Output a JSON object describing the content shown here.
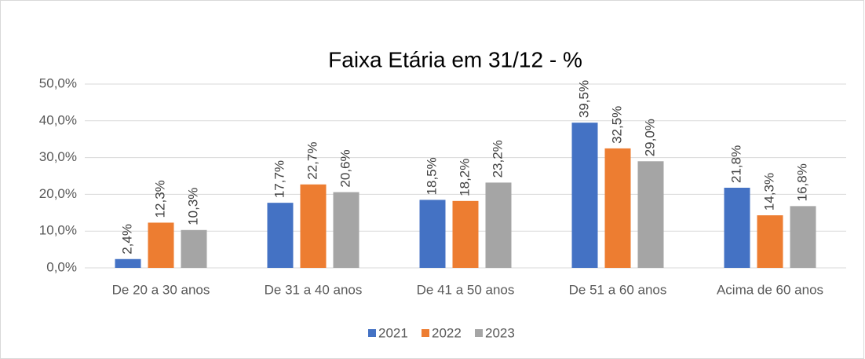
{
  "chart_data": {
    "type": "bar",
    "title": "Faixa Etária em 31/12 - %",
    "categories": [
      "De 20 a 30 anos",
      "De 31 a 40 anos",
      "De 41 a 50 anos",
      "De 51 a 60 anos",
      "Acima de 60 anos"
    ],
    "series": [
      {
        "name": "2021",
        "color": "#4472c4",
        "values": [
          2.4,
          17.7,
          18.5,
          39.5,
          21.8
        ],
        "value_labels": [
          "2,4%",
          "17,7%",
          "18,5%",
          "39,5%",
          "21,8%"
        ]
      },
      {
        "name": "2022",
        "color": "#ed7d31",
        "values": [
          12.3,
          22.7,
          18.2,
          32.5,
          14.3
        ],
        "value_labels": [
          "12,3%",
          "22,7%",
          "18,2%",
          "32,5%",
          "14,3%"
        ]
      },
      {
        "name": "2023",
        "color": "#a5a5a5",
        "values": [
          10.3,
          20.6,
          23.2,
          29.0,
          16.8
        ],
        "value_labels": [
          "10,3%",
          "20,6%",
          "23,2%",
          "29,0%",
          "16,8%"
        ]
      }
    ],
    "ylim": [
      0,
      50
    ],
    "yticks": [
      {
        "value": 0,
        "label": "0,0%"
      },
      {
        "value": 10,
        "label": "10,0%"
      },
      {
        "value": 20,
        "label": "20,0%"
      },
      {
        "value": 30,
        "label": "30,0%"
      },
      {
        "value": 40,
        "label": "40,0%"
      },
      {
        "value": 50,
        "label": "50,0%"
      }
    ],
    "grid": true,
    "legend": "bottom"
  }
}
